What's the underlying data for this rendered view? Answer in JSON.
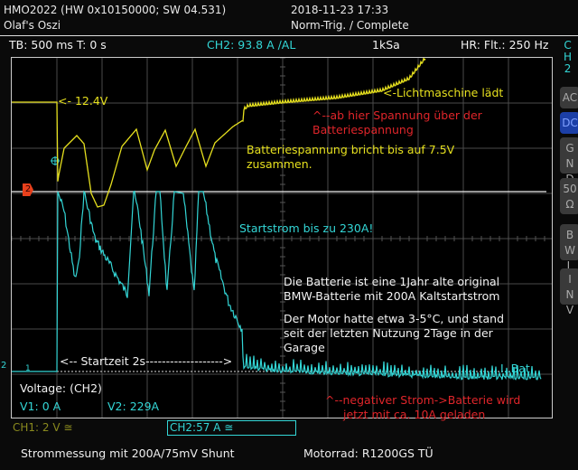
{
  "header": {
    "device": "HMO2022 (HW 0x10150000; SW 04.531)",
    "owner": "Olaf's Oszi",
    "datetime": "2018-11-23 17:33",
    "trigger_mode": "Norm-Trig. / Complete"
  },
  "status": {
    "timebase": "TB: 500 ms  T: 0 s",
    "trigger": "CH2: 93.8 A ∕AL",
    "sample_rate": "1kSa",
    "filter": "HR: Flt.: 250 Hz"
  },
  "side_menu": {
    "title": [
      "C",
      "H",
      "2"
    ],
    "buttons": [
      {
        "label": [
          "AC"
        ],
        "active": false
      },
      {
        "label": [
          "DC"
        ],
        "active": true
      },
      {
        "label": [
          "G",
          "N",
          "D"
        ],
        "active": false
      },
      {
        "label": [
          "50",
          "Ω"
        ],
        "active": false
      },
      {
        "label": [
          "B",
          "W",
          "L"
        ],
        "active": false
      },
      {
        "label": [
          "I",
          "N",
          "V"
        ],
        "active": false
      }
    ]
  },
  "annotations": {
    "voltage_start": "<- 12.4V",
    "alternator": "<-Lichtmaschine lädt",
    "above_battery_1": "^--ab hier Spannung über der",
    "above_battery_2": "Batteriespannung",
    "collapse_1": "Batteriespannung bricht bis auf 7.5V",
    "collapse_2": "zusammen.",
    "start_current": "Startstrom bis zu 230A!",
    "battery_1": "Die Batterie ist eine 1Jahr alte original",
    "battery_2": "BMW-Batterie mit 200A Kaltstartstrom",
    "motor_1": "Der Motor hatte etwa 3-5°C, und stand",
    "motor_2": "seit der letzten Nutzung 2Tage in der",
    "motor_3": "Garage",
    "start_time": "<-- Startzeit 2s------------------->",
    "bat": "I..Bat",
    "negative_1": "^--negativer Strom->Batterie wird",
    "negative_2": "jetzt mit ca. 10A geladen"
  },
  "markers": {
    "ch2_ref": "2",
    "ch1_ref": "1",
    "ch2_left": "2"
  },
  "cursor_readout": {
    "title": "Voltage: (CH2)",
    "v1": "V1: 0 A",
    "v2": "V2: 229A"
  },
  "channels": {
    "ch1": "CH1: 2 V ≅",
    "ch2": "CH2:57 A ≅"
  },
  "footer": {
    "left": "Strommessung mit 200A/75mV Shunt",
    "right": "Motorrad: R1200GS TÜ"
  },
  "colors": {
    "ch1": "#e6e01e",
    "ch2": "#33d6d6",
    "note": "#e0252a",
    "active": "#1c3fa6"
  }
}
